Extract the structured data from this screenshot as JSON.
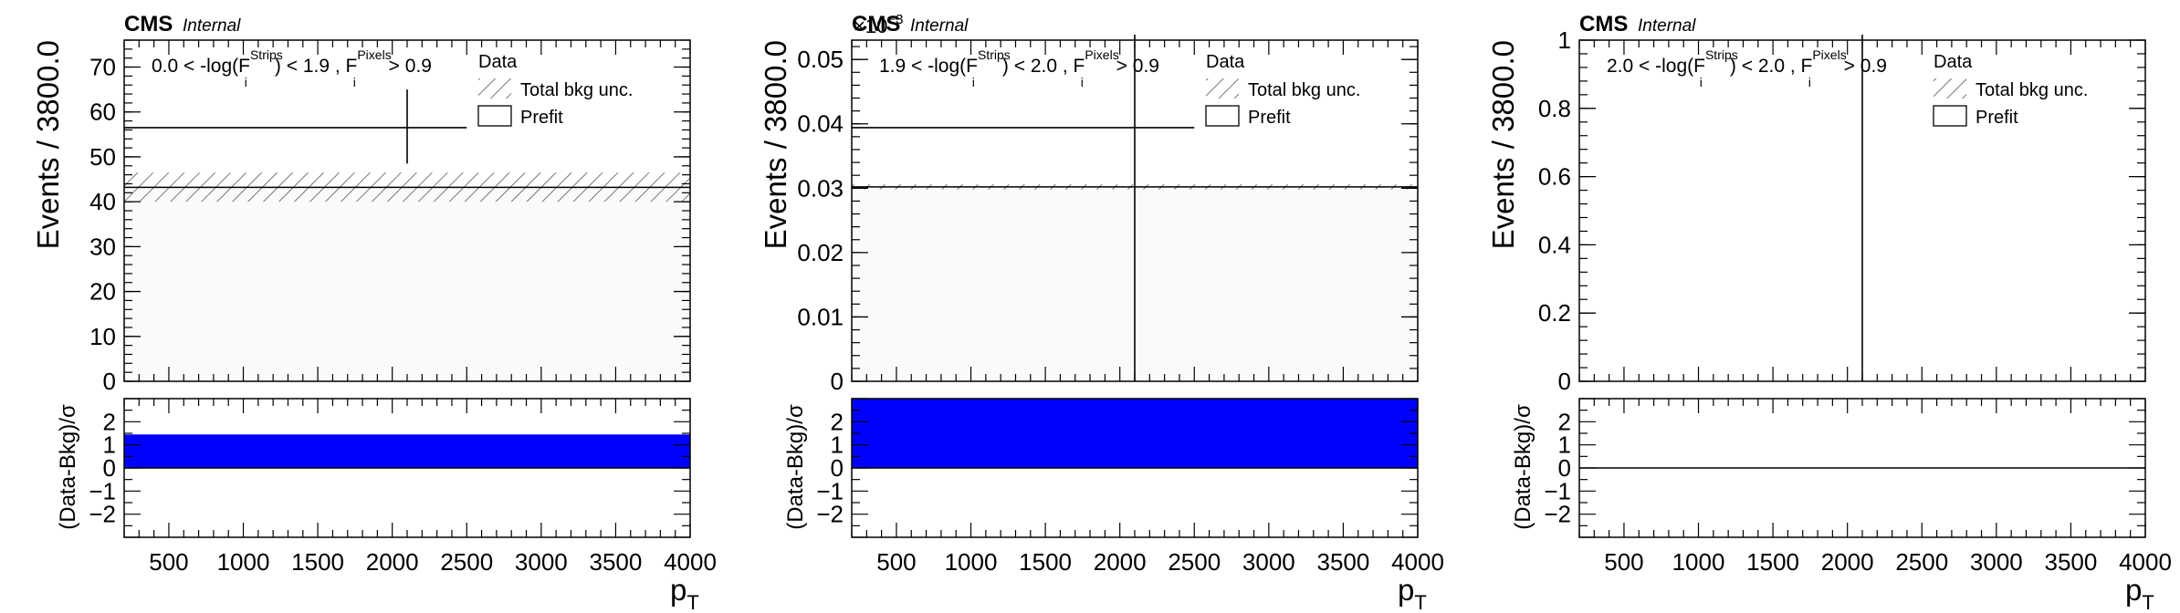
{
  "chart_data": [
    {
      "type": "bar",
      "experiment_label": "CMS",
      "status_label": "Internal",
      "selection": {
        "pre": "0.0 < -log(F",
        "sup1": "Strips",
        "sub1": "i",
        "mid": ") < 1.9 , F",
        "sup2": "Pixels",
        "sub2": "i",
        "post": " > 0.9"
      },
      "ylabel": "Events / 3800.0",
      "ratio_ylabel": "(Data-Bkg)/σ",
      "xlabel": "p",
      "xlabel_sub": "T",
      "exponent_label": "",
      "xlim": [
        200,
        4000
      ],
      "ylim": [
        0,
        76
      ],
      "yticks": [
        0,
        10,
        20,
        30,
        40,
        50,
        60,
        70
      ],
      "ytick_labels": [
        "0",
        "10",
        "20",
        "30",
        "40",
        "50",
        "60",
        "70"
      ],
      "xticks": [
        500,
        1000,
        1500,
        2000,
        2500,
        3000,
        3500,
        4000
      ],
      "xtick_labels": [
        "500",
        "1000",
        "1500",
        "2000",
        "2500",
        "3000",
        "3500",
        "4000"
      ],
      "ratio_ylim": [
        -3,
        3
      ],
      "ratio_yticks": [
        -2,
        -1,
        0,
        1,
        2
      ],
      "ratio_ytick_labels": [
        "−2",
        "−1",
        "0",
        "1",
        "2"
      ],
      "data": {
        "x": 2100,
        "y": 56.5,
        "yerr": [
          8.0,
          8.5
        ],
        "xerr": [
          1900,
          400
        ]
      },
      "prefit": 43.2,
      "bkg_band": [
        40.0,
        46.5
      ],
      "ratio": 1.45,
      "legend": [
        "Data",
        "Total bkg unc.",
        "Prefit"
      ]
    },
    {
      "type": "bar",
      "experiment_label": "CMS",
      "status_label": "Internal",
      "selection": {
        "pre": "1.9 < -log(F",
        "sup1": "Strips",
        "sub1": "i",
        "mid": ") < 2.0 , F",
        "sup2": "Pixels",
        "sub2": "i",
        "post": " > 0.9"
      },
      "ylabel": "Events / 3800.0",
      "ratio_ylabel": "(Data-Bkg)/σ",
      "xlabel": "p",
      "xlabel_sub": "T",
      "exponent_label": "×10",
      "exponent_power": "−3",
      "xlim": [
        200,
        4000
      ],
      "ylim": [
        0,
        0.053
      ],
      "yticks": [
        0,
        0.01,
        0.02,
        0.03,
        0.04,
        0.05
      ],
      "ytick_labels": [
        "0",
        "0.01",
        "0.02",
        "0.03",
        "0.04",
        "0.05"
      ],
      "xticks": [
        500,
        1000,
        1500,
        2000,
        2500,
        3000,
        3500,
        4000
      ],
      "xtick_labels": [
        "500",
        "1000",
        "1500",
        "2000",
        "2500",
        "3000",
        "3500",
        "4000"
      ],
      "ratio_ylim": [
        -3,
        3
      ],
      "ratio_yticks": [
        -2,
        -1,
        0,
        1,
        2
      ],
      "ratio_ytick_labels": [
        "−2",
        "−1",
        "0",
        "1",
        "2"
      ],
      "data": {
        "x": 2100,
        "y": 0.0394,
        "yerr": [
          0.0394,
          0.02
        ],
        "xerr": [
          1900,
          400
        ]
      },
      "prefit": 0.0302,
      "bkg_band": [
        0.0298,
        0.0306
      ],
      "ratio": 3.0,
      "legend": [
        "Data",
        "Total bkg unc.",
        "Prefit"
      ]
    },
    {
      "type": "bar",
      "experiment_label": "CMS",
      "status_label": "Internal",
      "selection": {
        "pre": "2.0 < -log(F",
        "sup1": "Strips",
        "sub1": "i",
        "mid": ") < 2.0 , F",
        "sup2": "Pixels",
        "sub2": "i",
        "post": " > 0.9"
      },
      "ylabel": "Events / 3800.0",
      "ratio_ylabel": "(Data-Bkg)/σ",
      "xlabel": "p",
      "xlabel_sub": "T",
      "exponent_label": "",
      "xlim": [
        200,
        4000
      ],
      "ylim": [
        0,
        1
      ],
      "yticks": [
        0,
        0.2,
        0.4,
        0.6,
        0.8,
        1
      ],
      "ytick_labels": [
        "0",
        "0.2",
        "0.4",
        "0.6",
        "0.8",
        "1"
      ],
      "xticks": [
        500,
        1000,
        1500,
        2000,
        2500,
        3000,
        3500,
        4000
      ],
      "xtick_labels": [
        "500",
        "1000",
        "1500",
        "2000",
        "2500",
        "3000",
        "3500",
        "4000"
      ],
      "ratio_ylim": [
        -3,
        3
      ],
      "ratio_yticks": [
        -2,
        -1,
        0,
        1,
        2
      ],
      "ratio_ytick_labels": [
        "−2",
        "−1",
        "0",
        "1",
        "2"
      ],
      "data": {
        "x": 2100,
        "y": 0,
        "yerr": [
          0,
          1.2
        ],
        "xerr": [
          0,
          0
        ]
      },
      "prefit": null,
      "bkg_band": null,
      "ratio": 0,
      "legend": [
        "Data",
        "Total bkg unc.",
        "Prefit"
      ]
    }
  ],
  "colors": {
    "ratio_fill": "#0000ff",
    "bkg_fill": "#fafafa",
    "hatch": "#555555",
    "axis": "#000000"
  }
}
